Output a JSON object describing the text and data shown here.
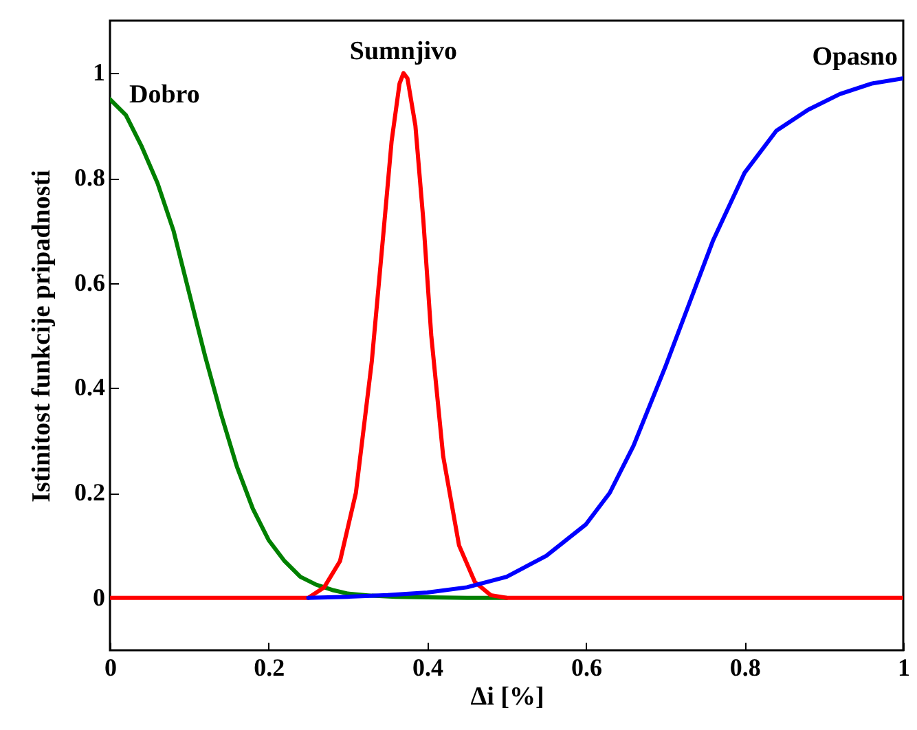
{
  "chart_data": {
    "type": "line",
    "xlabel": "Δi [%]",
    "ylabel": "Istinitost funkcije pripadnosti",
    "xlim": [
      0,
      1
    ],
    "ylim": [
      -0.1,
      1.1
    ],
    "xticks": [
      0,
      0.2,
      0.4,
      0.6,
      0.8,
      1
    ],
    "yticks": [
      0,
      0.2,
      0.4,
      0.6,
      0.8,
      1
    ],
    "grid": false,
    "marker": "none",
    "line_style": "solid",
    "series": [
      {
        "name": "Dobro",
        "color": "#008000",
        "x": [
          0,
          0.02,
          0.04,
          0.06,
          0.08,
          0.1,
          0.12,
          0.14,
          0.16,
          0.18,
          0.2,
          0.22,
          0.24,
          0.26,
          0.28,
          0.3,
          0.33,
          0.36,
          0.4,
          0.45,
          0.5
        ],
        "values": [
          0.95,
          0.92,
          0.86,
          0.79,
          0.7,
          0.58,
          0.46,
          0.35,
          0.25,
          0.17,
          0.11,
          0.07,
          0.04,
          0.025,
          0.015,
          0.008,
          0.004,
          0.002,
          0.001,
          0,
          0
        ]
      },
      {
        "name": "Sumnjivo",
        "color": "#ff0000",
        "x": [
          0,
          0.25,
          0.27,
          0.29,
          0.31,
          0.33,
          0.345,
          0.355,
          0.365,
          0.37,
          0.375,
          0.385,
          0.395,
          0.405,
          0.42,
          0.44,
          0.46,
          0.48,
          0.5,
          1
        ],
        "values": [
          0,
          0,
          0.02,
          0.07,
          0.2,
          0.45,
          0.7,
          0.87,
          0.98,
          1,
          0.99,
          0.9,
          0.72,
          0.5,
          0.27,
          0.1,
          0.03,
          0.005,
          0,
          0
        ]
      },
      {
        "name": "Opasno",
        "color": "#0000ff",
        "x": [
          0.25,
          0.3,
          0.35,
          0.4,
          0.45,
          0.5,
          0.55,
          0.6,
          0.63,
          0.66,
          0.7,
          0.73,
          0.76,
          0.8,
          0.84,
          0.88,
          0.92,
          0.96,
          1
        ],
        "values": [
          0,
          0.002,
          0.005,
          0.01,
          0.02,
          0.04,
          0.08,
          0.14,
          0.2,
          0.29,
          0.44,
          0.56,
          0.68,
          0.81,
          0.89,
          0.93,
          0.96,
          0.98,
          0.99
        ]
      }
    ]
  }
}
